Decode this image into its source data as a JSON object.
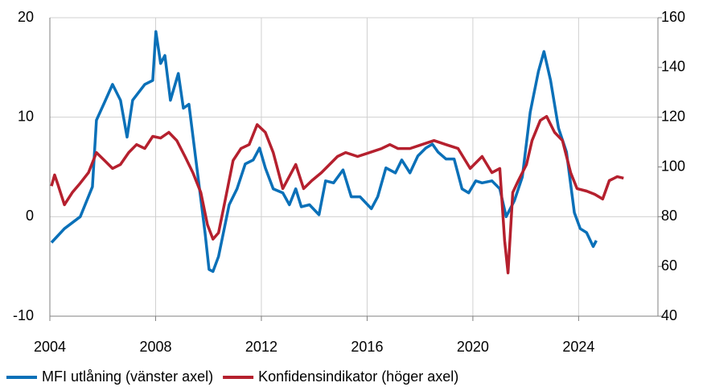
{
  "chart_data": {
    "type": "line",
    "grid": true,
    "legend": "bottom",
    "xlim": [
      2004,
      2027
    ],
    "xticks": [
      2004,
      2008,
      2012,
      2016,
      2020,
      2024
    ],
    "ylim": [
      -10,
      20
    ],
    "yticks": [
      -10,
      0,
      10,
      20
    ],
    "y2lim": [
      40,
      160
    ],
    "y2ticks": [
      40,
      60,
      80,
      100,
      120,
      140,
      160
    ],
    "series": [
      {
        "name": "MFI utlåning (vänster axel)",
        "color": "#0a70b8",
        "axis": "y",
        "x": [
          2004.06,
          2004.55,
          2005.15,
          2005.61,
          2005.76,
          2006.07,
          2006.37,
          2006.67,
          2006.92,
          2007.13,
          2007.59,
          2007.89,
          2008.01,
          2008.19,
          2008.35,
          2008.56,
          2008.86,
          2009.05,
          2009.26,
          2009.56,
          2009.87,
          2010.02,
          2010.17,
          2010.38,
          2010.78,
          2011.08,
          2011.39,
          2011.69,
          2011.93,
          2012.15,
          2012.45,
          2012.81,
          2013.06,
          2013.3,
          2013.51,
          2013.82,
          2014.18,
          2014.43,
          2014.73,
          2015.09,
          2015.4,
          2015.73,
          2016.16,
          2016.4,
          2016.71,
          2017.07,
          2017.31,
          2017.62,
          2017.92,
          2018.22,
          2018.47,
          2018.68,
          2018.98,
          2019.29,
          2019.59,
          2019.84,
          2020.11,
          2020.35,
          2020.72,
          2021.02,
          2021.26,
          2021.57,
          2021.87,
          2022.17,
          2022.48,
          2022.69,
          2022.94,
          2023.24,
          2023.54,
          2023.84,
          2024.06,
          2024.3,
          2024.55,
          2024.67
        ],
        "values": [
          -2.6,
          -1.2,
          0,
          3,
          9.7,
          11.5,
          13.3,
          11.7,
          8,
          11.7,
          13.3,
          13.7,
          18.6,
          15.4,
          16.2,
          11.7,
          14.4,
          10.9,
          11.3,
          4.9,
          -1.6,
          -5.3,
          -5.5,
          -4,
          1.2,
          2.8,
          5.3,
          5.7,
          6.9,
          4.9,
          2.8,
          2.4,
          1.2,
          2.8,
          1,
          1.2,
          0.2,
          3.6,
          3.4,
          4.7,
          2,
          2,
          0.8,
          2,
          4.9,
          4.4,
          5.7,
          4.4,
          6.1,
          6.9,
          7.3,
          6.5,
          5.8,
          5.8,
          2.8,
          2.4,
          3.6,
          3.4,
          3.6,
          2.8,
          0,
          1.6,
          4,
          10.5,
          14.6,
          16.6,
          13.7,
          8.9,
          6.5,
          0.4,
          -1.2,
          -1.6,
          -3,
          -2.4
        ]
      },
      {
        "name": "Konfidensindikator (höger axel)",
        "color": "#b5202e",
        "axis": "y2",
        "x": [
          2004.06,
          2004.18,
          2004.3,
          2004.55,
          2004.85,
          2005.15,
          2005.46,
          2005.76,
          2006.07,
          2006.37,
          2006.67,
          2006.98,
          2007.28,
          2007.59,
          2007.89,
          2008.19,
          2008.5,
          2008.8,
          2009.11,
          2009.41,
          2009.71,
          2009.96,
          2010.17,
          2010.38,
          2010.63,
          2010.93,
          2011.23,
          2011.54,
          2011.84,
          2012.15,
          2012.45,
          2012.81,
          2013.3,
          2013.6,
          2013.91,
          2014.27,
          2014.58,
          2014.88,
          2015.19,
          2015.64,
          2016.1,
          2016.55,
          2016.86,
          2017.16,
          2017.62,
          2018.07,
          2018.53,
          2018.98,
          2019.44,
          2019.9,
          2020.35,
          2020.72,
          2021.02,
          2021.2,
          2021.33,
          2021.51,
          2021.72,
          2022.03,
          2022.24,
          2022.55,
          2022.79,
          2023.09,
          2023.39,
          2023.7,
          2023.94,
          2024.3,
          2024.61,
          2024.91,
          2025.16,
          2025.46,
          2025.7
        ],
        "values": [
          92.3,
          96.8,
          93,
          84.8,
          89.7,
          93.5,
          97.7,
          105.8,
          102.6,
          99.4,
          101,
          105.8,
          109,
          107.4,
          112.3,
          111.6,
          113.9,
          110.6,
          104.2,
          97.7,
          89.7,
          76.8,
          71,
          73.5,
          86.5,
          102.6,
          107.4,
          109,
          117,
          113.9,
          105.8,
          91.3,
          101,
          91.3,
          94.5,
          97.7,
          101,
          104.2,
          105.8,
          104.2,
          105.8,
          107.4,
          109,
          107.4,
          107.4,
          109,
          110.6,
          109,
          107.4,
          99.4,
          104.2,
          97.7,
          99.4,
          70.3,
          57.4,
          89.7,
          94.5,
          101,
          110.6,
          118.7,
          120.3,
          113.9,
          110.6,
          97.7,
          91.3,
          90.3,
          89,
          87.1,
          94.5,
          96.1,
          95.5
        ]
      }
    ]
  }
}
